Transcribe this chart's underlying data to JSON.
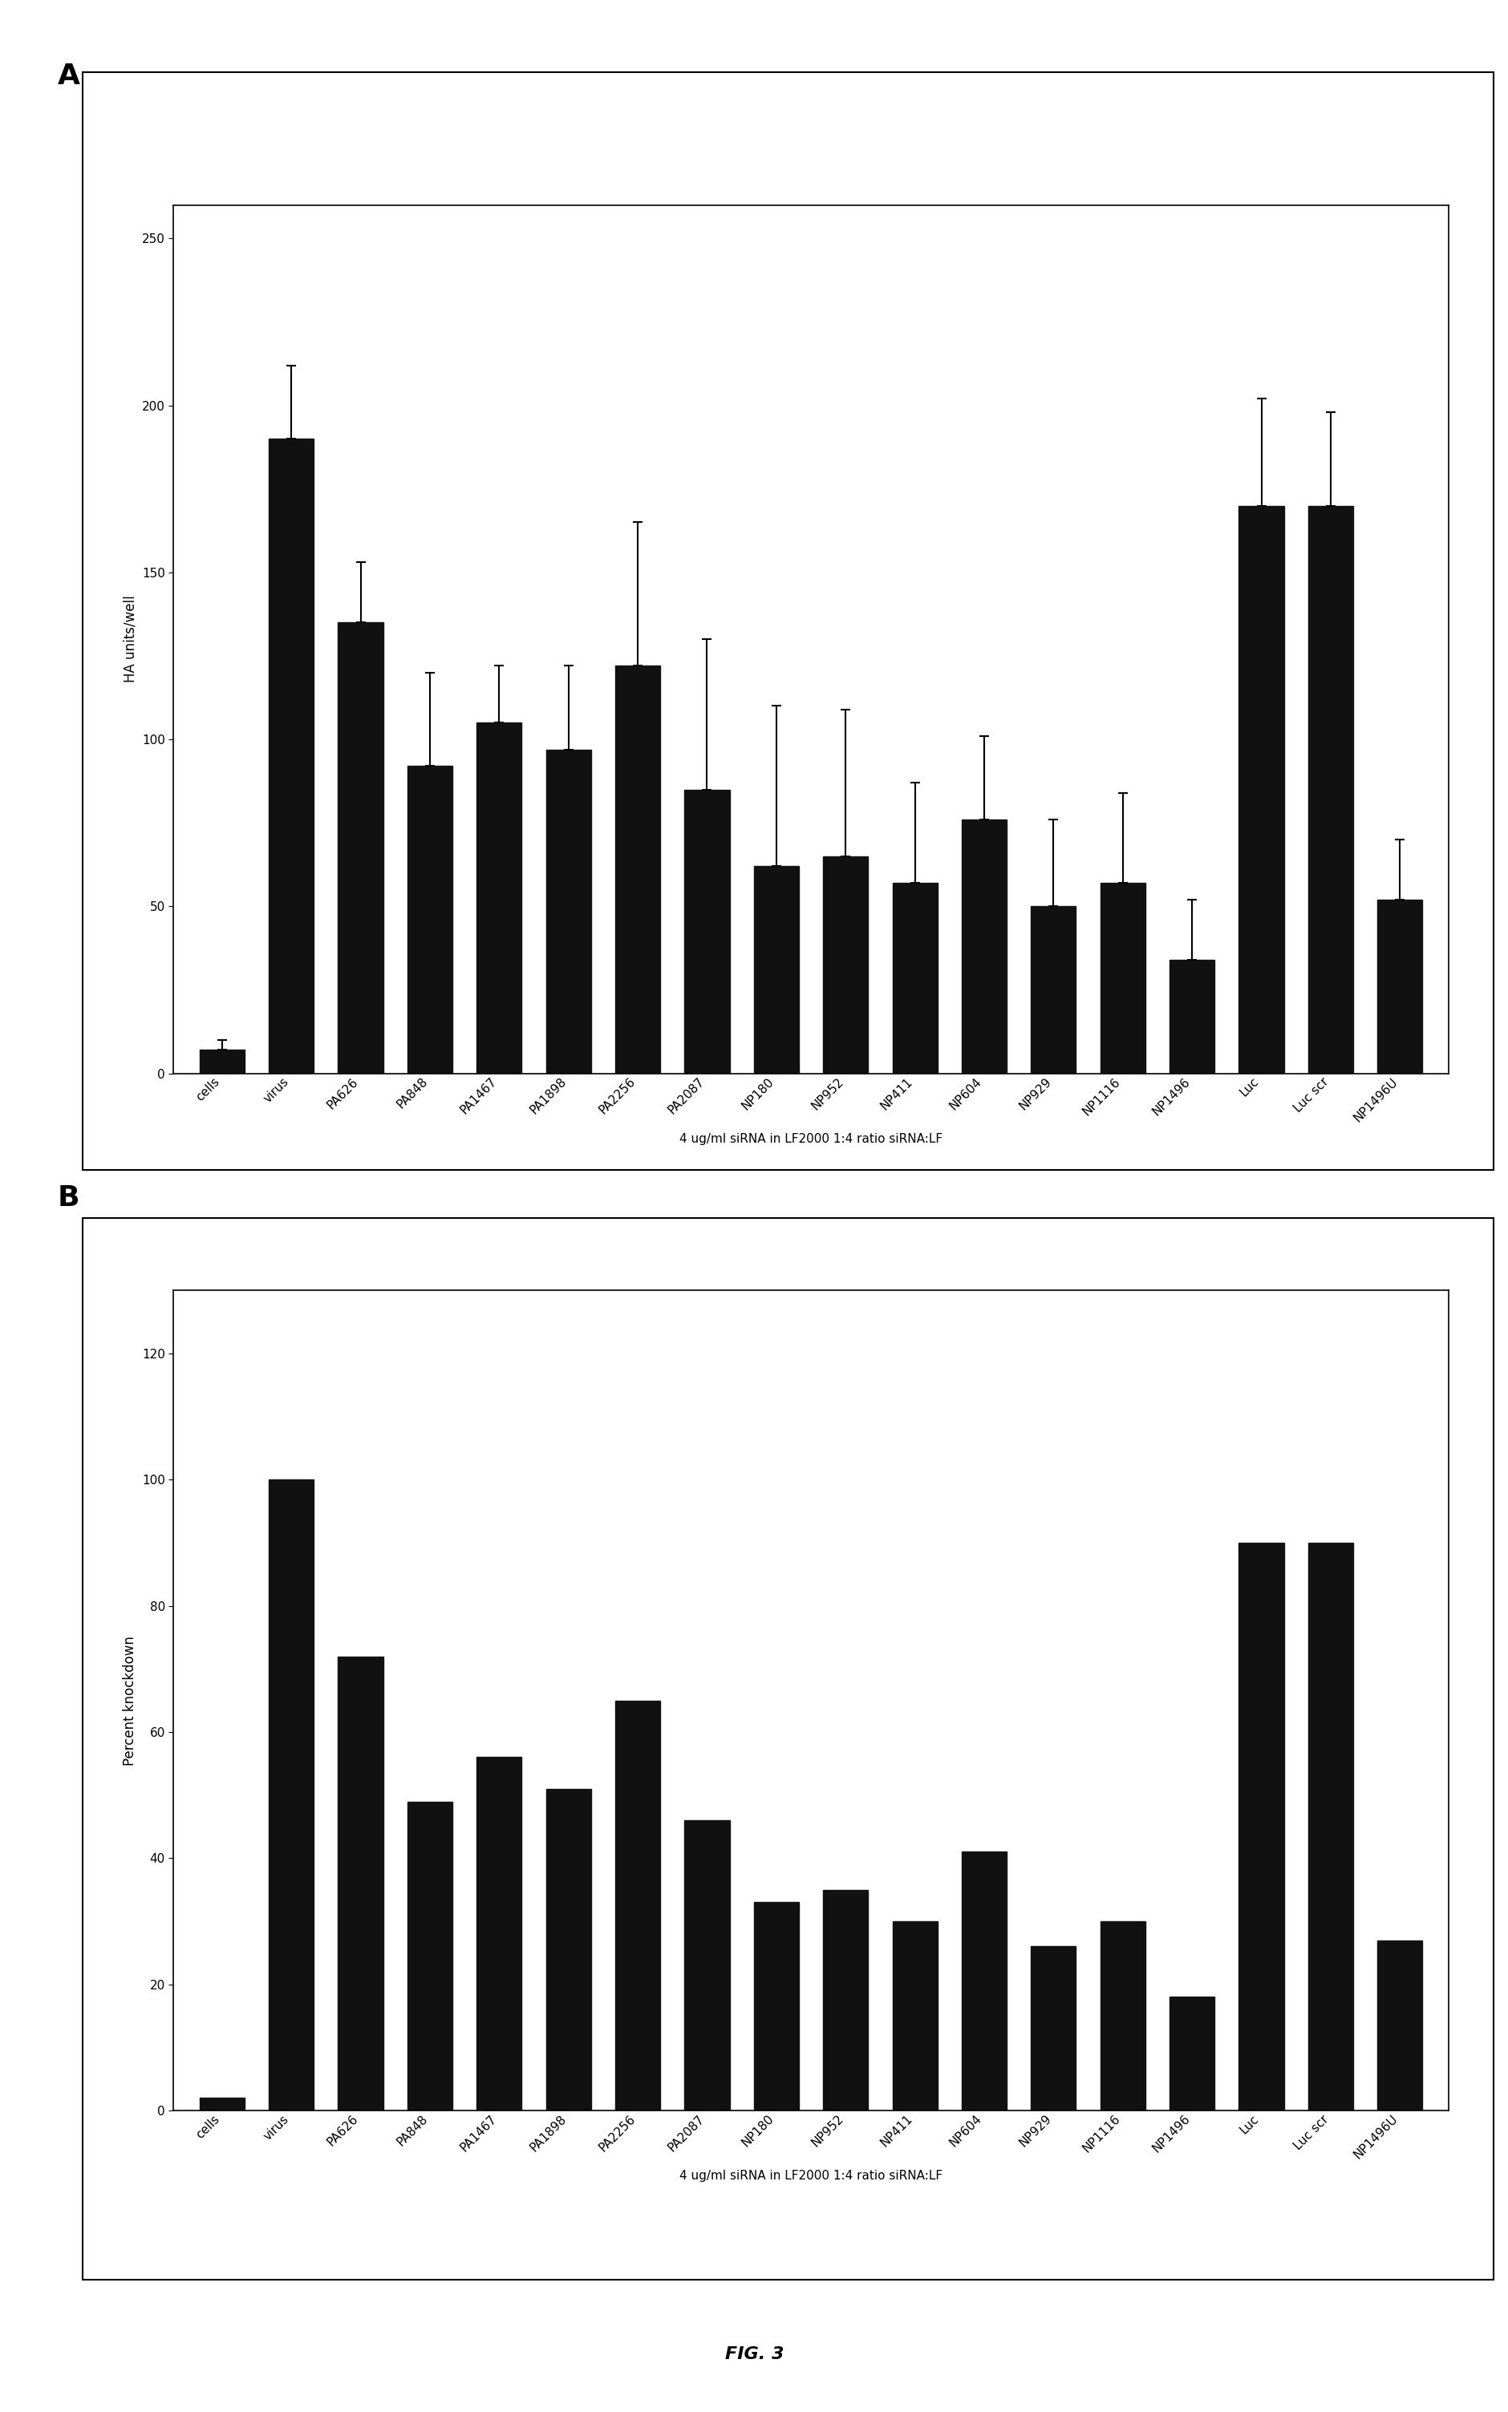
{
  "categories": [
    "cells",
    "virus",
    "PA626",
    "PA848",
    "PA1467",
    "PA1898",
    "PA2256",
    "PA2087",
    "NP180",
    "NP952",
    "NP411",
    "NP604",
    "NP929",
    "NP1116",
    "NP1496",
    "Luc",
    "Luc scr",
    "NP1496U"
  ],
  "panel_A": {
    "values": [
      7,
      190,
      135,
      92,
      105,
      97,
      122,
      85,
      62,
      65,
      57,
      76,
      50,
      57,
      34,
      170,
      170,
      52
    ],
    "errors": [
      3,
      22,
      18,
      28,
      17,
      25,
      43,
      45,
      48,
      44,
      30,
      25,
      26,
      27,
      18,
      32,
      28,
      18
    ],
    "ylabel": "HA units/well",
    "xlabel": "4 ug/ml siRNA in LF2000 1:4 ratio siRNA:LF",
    "ylim": [
      0,
      260
    ],
    "yticks": [
      0,
      50,
      100,
      150,
      200,
      250
    ]
  },
  "panel_B": {
    "values": [
      2,
      100,
      72,
      49,
      56,
      51,
      65,
      46,
      33,
      35,
      30,
      41,
      26,
      30,
      18,
      90,
      90,
      27
    ],
    "ylabel": "Percent knockdown",
    "xlabel": "4 ug/ml siRNA in LF2000 1:4 ratio siRNA:LF",
    "ylim": [
      0,
      130
    ],
    "yticks": [
      0,
      20,
      40,
      60,
      80,
      100,
      120
    ]
  },
  "bar_color": "#111111",
  "label_A": "A",
  "label_B": "B",
  "figure_label": "FIG. 3",
  "background_color": "#ffffff"
}
